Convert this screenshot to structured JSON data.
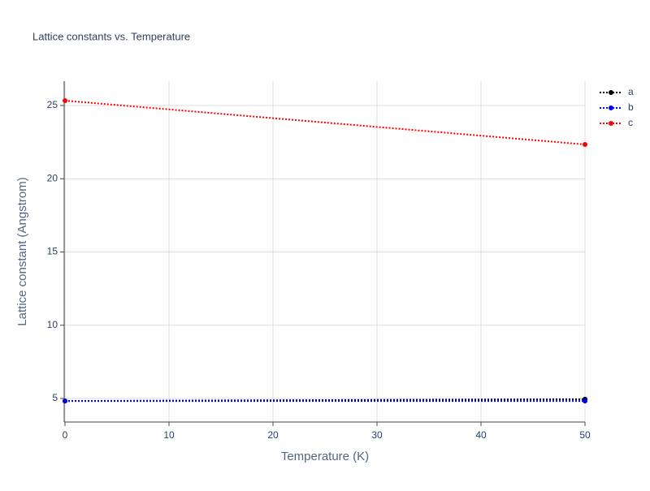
{
  "chart_data": {
    "type": "line",
    "title": "Lattice constants vs. Temperature",
    "x_label": "Temperature (K)",
    "y_label": "Lattice constant (Angstrom)",
    "x": [
      0,
      50
    ],
    "series": [
      {
        "name": "a",
        "color": "#000000",
        "values": [
          4.83,
          4.95
        ]
      },
      {
        "name": "b",
        "color": "#0000ff",
        "values": [
          4.83,
          4.83
        ]
      },
      {
        "name": "c",
        "color": "#ff0000",
        "values": [
          25.33,
          22.34
        ]
      }
    ],
    "xlim": [
      0,
      50
    ],
    "xticks": [
      0,
      10,
      20,
      30,
      40,
      50
    ],
    "ylim": [
      3.45,
      26.66
    ],
    "yticks": [
      5,
      10,
      15,
      20,
      25
    ],
    "grid": true,
    "legend": "right"
  }
}
